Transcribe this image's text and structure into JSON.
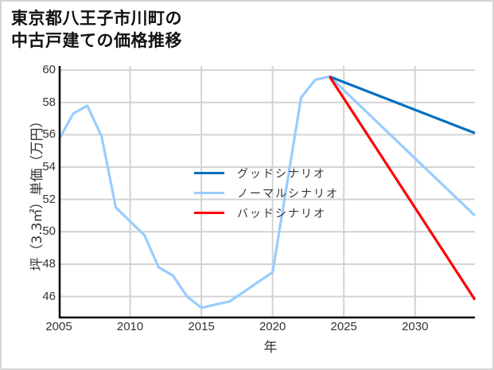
{
  "title_lines": [
    "東京都八王子市川町の",
    "中古戸建ての価格推移"
  ],
  "chart_data": {
    "type": "line",
    "title": "東京都八王子市川町の中古戸建ての価格推移",
    "xlabel": "年",
    "ylabel": "坪（3.3㎡）単価（万円）",
    "xlim": [
      2005,
      2034.2
    ],
    "ylim": [
      44.7,
      60.25
    ],
    "grid": true,
    "legend_position": "center",
    "x_ticks": [
      2005,
      2010,
      2015,
      2020,
      2025,
      2030
    ],
    "y_ticks": [
      46,
      48,
      50,
      52,
      54,
      56,
      58,
      60
    ],
    "series": [
      {
        "name": "グッドシナリオ",
        "color": "#0070c0",
        "x": [
          2024,
          2034.2
        ],
        "values": [
          59.6,
          56.1
        ]
      },
      {
        "name": "ノーマルシナリオ",
        "color": "#99ccff",
        "x": [
          2005,
          2006,
          2007,
          2008,
          2009,
          2011,
          2012,
          2013,
          2014,
          2015,
          2017,
          2020,
          2022,
          2023,
          2024,
          2034.2
        ],
        "values": [
          55.7,
          57.3,
          57.8,
          55.9,
          51.5,
          49.8,
          47.8,
          47.3,
          46.0,
          45.3,
          45.7,
          47.5,
          58.3,
          59.4,
          59.6,
          51.0
        ]
      },
      {
        "name": "バッドシナリオ",
        "color": "#ff0000",
        "x": [
          2024,
          2034.2
        ],
        "values": [
          59.6,
          45.8
        ]
      }
    ]
  }
}
